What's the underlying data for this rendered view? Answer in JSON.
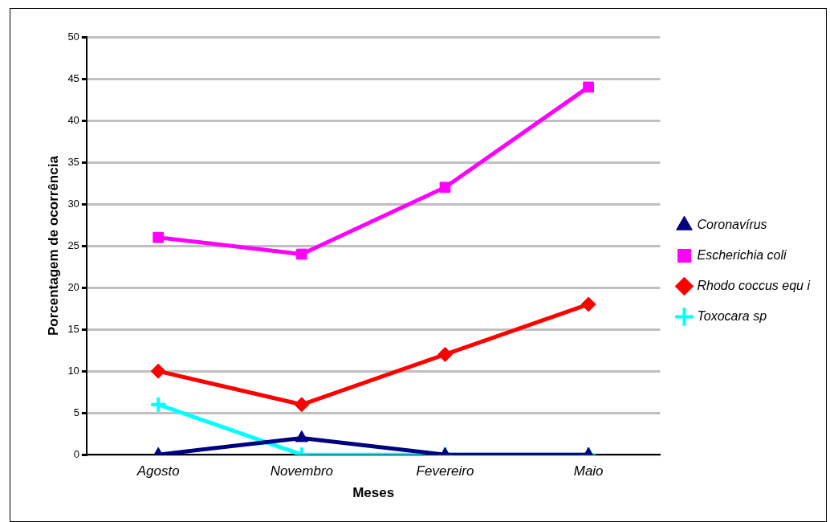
{
  "chart_data": {
    "type": "line",
    "xlabel": "Meses",
    "ylabel": "Porcentagem de ocorrência",
    "categories": [
      "Agosto",
      "Novembro",
      "Fevereiro",
      "Maio"
    ],
    "series": [
      {
        "name": "Coronavírus",
        "color": "#000080",
        "marker": "triangle",
        "values": [
          0,
          2,
          0,
          0
        ]
      },
      {
        "name": "Escherichia coli",
        "color": "#ff00ff",
        "marker": "square",
        "values": [
          26,
          24,
          32,
          44
        ]
      },
      {
        "name": "Rhodo coccus equ i",
        "color": "#ff0000",
        "marker": "diamond",
        "values": [
          10,
          6,
          12,
          18
        ]
      },
      {
        "name": "Toxocara sp",
        "color": "#00ffff",
        "marker": "cross",
        "values": [
          6,
          0,
          0,
          0
        ]
      }
    ],
    "ylim": [
      0,
      50
    ],
    "yticks": [
      0,
      5,
      10,
      15,
      20,
      25,
      30,
      35,
      40,
      45,
      50
    ],
    "grid": "y",
    "legend": "right",
    "line_style": "solid"
  }
}
